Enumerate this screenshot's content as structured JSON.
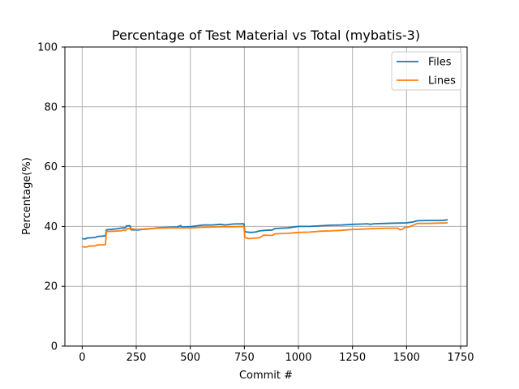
{
  "chart_data": {
    "type": "line",
    "title": "Percentage of Test Material vs Total (mybatis-3)",
    "xlabel": "Commit #",
    "ylabel": "Percentage(%)",
    "xlim": [
      -80,
      1780
    ],
    "ylim": [
      0,
      100
    ],
    "xticks": [
      0,
      250,
      500,
      750,
      1000,
      1250,
      1500,
      1750
    ],
    "yticks": [
      0,
      20,
      40,
      60,
      80,
      100
    ],
    "grid": true,
    "legend_position": "top-right",
    "series": [
      {
        "name": "Files",
        "color": "#1f77b4",
        "points": [
          [
            0,
            35.9
          ],
          [
            15,
            35.8
          ],
          [
            20,
            36.1
          ],
          [
            40,
            36.2
          ],
          [
            60,
            36.3
          ],
          [
            70,
            36.6
          ],
          [
            100,
            36.8
          ],
          [
            108,
            36.8
          ],
          [
            112,
            38.9
          ],
          [
            130,
            39.0
          ],
          [
            160,
            39.2
          ],
          [
            185,
            39.5
          ],
          [
            200,
            39.5
          ],
          [
            205,
            40.2
          ],
          [
            222,
            40.2
          ],
          [
            225,
            38.9
          ],
          [
            260,
            38.8
          ],
          [
            275,
            39.0
          ],
          [
            300,
            39.1
          ],
          [
            350,
            39.5
          ],
          [
            400,
            39.7
          ],
          [
            440,
            39.8
          ],
          [
            455,
            40.3
          ],
          [
            460,
            39.8
          ],
          [
            500,
            39.9
          ],
          [
            530,
            40.2
          ],
          [
            560,
            40.5
          ],
          [
            600,
            40.5
          ],
          [
            640,
            40.7
          ],
          [
            660,
            40.5
          ],
          [
            700,
            40.8
          ],
          [
            748,
            40.9
          ],
          [
            752,
            38.2
          ],
          [
            780,
            38.0
          ],
          [
            800,
            38.1
          ],
          [
            820,
            38.5
          ],
          [
            850,
            38.7
          ],
          [
            880,
            38.8
          ],
          [
            890,
            39.3
          ],
          [
            950,
            39.5
          ],
          [
            1000,
            40.0
          ],
          [
            1050,
            40.0
          ],
          [
            1100,
            40.2
          ],
          [
            1150,
            40.4
          ],
          [
            1200,
            40.5
          ],
          [
            1250,
            40.7
          ],
          [
            1300,
            40.8
          ],
          [
            1320,
            40.9
          ],
          [
            1330,
            40.7
          ],
          [
            1350,
            40.9
          ],
          [
            1400,
            41.0
          ],
          [
            1450,
            41.1
          ],
          [
            1500,
            41.2
          ],
          [
            1530,
            41.5
          ],
          [
            1550,
            41.9
          ],
          [
            1600,
            42.0
          ],
          [
            1650,
            42.0
          ],
          [
            1680,
            42.1
          ],
          [
            1690,
            42.3
          ]
        ]
      },
      {
        "name": "Lines",
        "color": "#ff7f0e",
        "points": [
          [
            0,
            33.2
          ],
          [
            20,
            33.1
          ],
          [
            30,
            33.4
          ],
          [
            60,
            33.5
          ],
          [
            70,
            33.8
          ],
          [
            108,
            33.9
          ],
          [
            112,
            38.3
          ],
          [
            140,
            38.4
          ],
          [
            180,
            38.5
          ],
          [
            190,
            38.8
          ],
          [
            200,
            38.6
          ],
          [
            210,
            39.3
          ],
          [
            225,
            39.3
          ],
          [
            250,
            39.0
          ],
          [
            300,
            39.2
          ],
          [
            350,
            39.4
          ],
          [
            400,
            39.5
          ],
          [
            450,
            39.5
          ],
          [
            500,
            39.5
          ],
          [
            550,
            39.7
          ],
          [
            600,
            39.8
          ],
          [
            650,
            39.9
          ],
          [
            700,
            39.9
          ],
          [
            748,
            40.0
          ],
          [
            752,
            36.3
          ],
          [
            770,
            35.9
          ],
          [
            820,
            36.2
          ],
          [
            840,
            37.1
          ],
          [
            880,
            37.0
          ],
          [
            890,
            37.5
          ],
          [
            950,
            37.7
          ],
          [
            1000,
            38.0
          ],
          [
            1050,
            38.1
          ],
          [
            1100,
            38.4
          ],
          [
            1150,
            38.5
          ],
          [
            1200,
            38.7
          ],
          [
            1250,
            39.0
          ],
          [
            1300,
            39.1
          ],
          [
            1350,
            39.3
          ],
          [
            1400,
            39.4
          ],
          [
            1460,
            39.4
          ],
          [
            1470,
            38.9
          ],
          [
            1480,
            39.0
          ],
          [
            1490,
            39.6
          ],
          [
            1510,
            39.8
          ],
          [
            1530,
            40.4
          ],
          [
            1550,
            41.0
          ],
          [
            1600,
            41.0
          ],
          [
            1650,
            41.1
          ],
          [
            1690,
            41.2
          ]
        ]
      }
    ]
  }
}
